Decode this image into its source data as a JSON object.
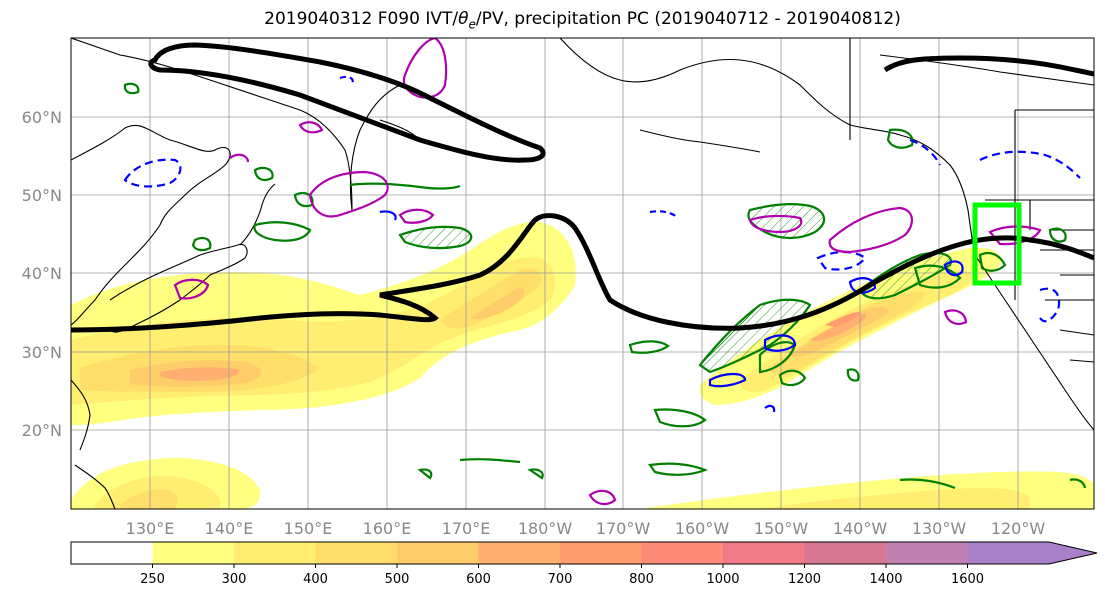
{
  "title": {
    "prefix": "2019040312 F090 IVT/",
    "theta": "θ",
    "theta_sub": "e",
    "suffix": "/PV, precipitation PC (2019040712 - 2019040812)"
  },
  "lat_labels": [
    "60°N",
    "50°N",
    "40°N",
    "30°N",
    "20°N"
  ],
  "lon_labels": [
    "130°E",
    "140°E",
    "150°E",
    "160°E",
    "170°E",
    "180°W",
    "170°W",
    "160°W",
    "150°W",
    "140°W",
    "130°W",
    "120°W"
  ],
  "colorbar": {
    "ticks": [
      "250",
      "300",
      "400",
      "500",
      "600",
      "700",
      "800",
      "1000",
      "1200",
      "1400",
      "1600"
    ],
    "colors": [
      "#ffff80",
      "#ffee70",
      "#ffde6a",
      "#ffcc6a",
      "#ffb070",
      "#ff9d70",
      "#ff8c78",
      "#f07c88",
      "#d87890",
      "#c080b0",
      "#a880c8"
    ]
  },
  "legend_colors": {
    "ivt_contour": "#000000",
    "theta_e_positive": "#008000",
    "theta_e_negative": "#0000ff",
    "pv": "#b000b0",
    "target_box": "#00ff00"
  }
}
